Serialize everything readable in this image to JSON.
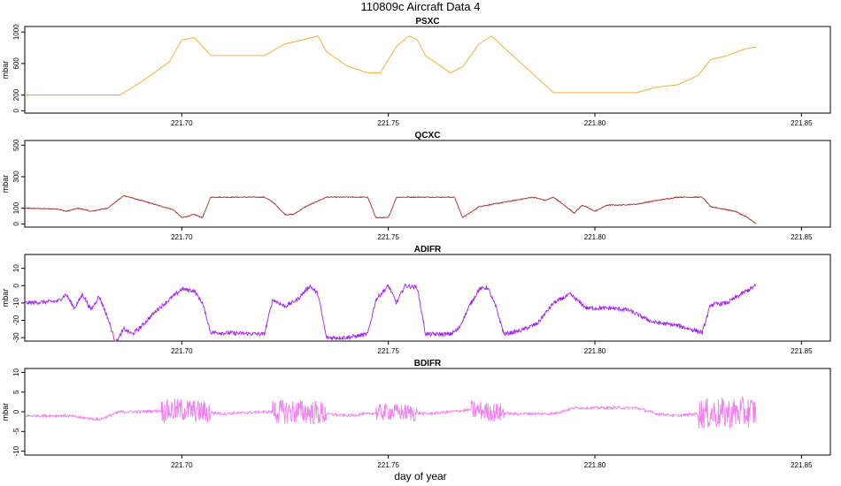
{
  "figure": {
    "title": "110809c   Aircraft Data 4",
    "xlabel": "day of year"
  },
  "chart_data": [
    {
      "type": "line",
      "title": "PSXC",
      "ylabel": "mbar",
      "color": "#f5a623",
      "xlim": [
        221.662,
        221.857
      ],
      "ylim": [
        -30,
        1070
      ],
      "xticks": [
        "221.70",
        "221.75",
        "221.80",
        "221.85"
      ],
      "xtick_values": [
        221.7,
        221.75,
        221.8,
        221.85
      ],
      "yticks": [
        "0",
        "200",
        "600",
        "1000"
      ],
      "ytick_values": [
        0,
        200,
        600,
        1000
      ],
      "noise": 0,
      "x": [
        221.662,
        221.685,
        221.69,
        221.697,
        221.7,
        221.703,
        221.705,
        221.707,
        221.72,
        221.725,
        221.73,
        221.733,
        221.735,
        221.74,
        221.745,
        221.748,
        221.752,
        221.755,
        221.757,
        221.759,
        221.765,
        221.768,
        221.772,
        221.775,
        221.778,
        221.79,
        221.81,
        221.815,
        221.82,
        221.823,
        221.825,
        221.828,
        221.832,
        221.836,
        221.839
      ],
      "y": [
        200,
        200,
        360,
        620,
        900,
        930,
        820,
        700,
        700,
        850,
        910,
        950,
        750,
        570,
        480,
        480,
        820,
        950,
        900,
        700,
        480,
        560,
        850,
        950,
        800,
        230,
        230,
        300,
        330,
        400,
        450,
        650,
        700,
        780,
        810
      ]
    },
    {
      "type": "line",
      "title": "QCXC",
      "ylabel": "mbar",
      "color": "#a52a2a",
      "xlim": [
        221.662,
        221.857
      ],
      "ylim": [
        -20,
        530
      ],
      "xticks": [
        "221.70",
        "221.75",
        "221.80",
        "221.85"
      ],
      "xtick_values": [
        221.7,
        221.75,
        221.8,
        221.85
      ],
      "yticks": [
        "0",
        "100",
        "300",
        "500"
      ],
      "ytick_values": [
        0,
        100,
        300,
        500
      ],
      "noise": 3,
      "x": [
        221.662,
        221.67,
        221.672,
        221.675,
        221.678,
        221.682,
        221.686,
        221.69,
        221.694,
        221.698,
        221.7,
        221.703,
        221.705,
        221.707,
        221.72,
        221.722,
        221.725,
        221.727,
        221.73,
        221.735,
        221.745,
        221.747,
        221.75,
        221.752,
        221.766,
        221.768,
        221.772,
        221.785,
        221.788,
        221.79,
        221.792,
        221.795,
        221.797,
        221.8,
        221.803,
        221.806,
        221.81,
        221.814,
        221.82,
        221.826,
        221.828,
        221.834,
        221.837,
        221.839
      ],
      "y": [
        100,
        95,
        80,
        100,
        80,
        100,
        180,
        150,
        120,
        90,
        40,
        60,
        40,
        170,
        170,
        140,
        60,
        60,
        110,
        170,
        170,
        40,
        40,
        170,
        170,
        40,
        110,
        170,
        150,
        170,
        130,
        70,
        120,
        80,
        120,
        120,
        125,
        145,
        170,
        170,
        110,
        80,
        40,
        0
      ]
    },
    {
      "type": "line",
      "title": "ADIFR",
      "ylabel": "mbar",
      "color": "#a020f0",
      "xlim": [
        221.662,
        221.857
      ],
      "ylim": [
        -32,
        18
      ],
      "xticks": [
        "221.70",
        "221.75",
        "221.80",
        "221.85"
      ],
      "xtick_values": [
        221.7,
        221.75,
        221.8,
        221.85
      ],
      "yticks": [
        "-30",
        "-20",
        "-10",
        "0",
        "10"
      ],
      "ytick_values": [
        -30,
        -20,
        -10,
        0,
        10
      ],
      "noise": 1.2,
      "x": [
        221.662,
        221.67,
        221.672,
        221.674,
        221.676,
        221.678,
        221.68,
        221.682,
        221.684,
        221.686,
        221.688,
        221.69,
        221.694,
        221.697,
        221.7,
        221.703,
        221.705,
        221.707,
        221.72,
        221.722,
        221.725,
        221.728,
        221.731,
        221.733,
        221.735,
        221.74,
        221.745,
        221.747,
        221.75,
        221.752,
        221.754,
        221.757,
        221.759,
        221.765,
        221.767,
        221.77,
        221.772,
        221.774,
        221.776,
        221.778,
        221.782,
        221.786,
        221.79,
        221.794,
        221.798,
        221.804,
        221.808,
        221.814,
        221.82,
        221.826,
        221.828,
        221.832,
        221.836,
        221.839
      ],
      "y": [
        -10,
        -9,
        -5,
        -13,
        -5,
        -14,
        -6,
        -18,
        -33,
        -25,
        -28,
        -24,
        -14,
        -8,
        -2,
        -3,
        -10,
        -27,
        -28,
        -8,
        -12,
        -8,
        0,
        -5,
        -30,
        -30,
        -28,
        -8,
        0,
        -10,
        0,
        -1,
        -28,
        -28,
        -25,
        -10,
        -2,
        -1,
        -12,
        -28,
        -26,
        -22,
        -10,
        -5,
        -13,
        -13,
        -14,
        -21,
        -23,
        -27,
        -11,
        -10,
        -4,
        0
      ]
    },
    {
      "type": "line",
      "title": "BDIFR",
      "ylabel": "mbar",
      "color": "#ee82ee",
      "xlim": [
        221.662,
        221.857
      ],
      "ylim": [
        -11,
        11
      ],
      "xticks": [
        "221.70",
        "221.75",
        "221.80",
        "221.85"
      ],
      "xtick_values": [
        221.7,
        221.75,
        221.8,
        221.85
      ],
      "yticks": [
        "-10",
        "-5",
        "0",
        "5",
        "10"
      ],
      "ytick_values": [
        -10,
        -5,
        0,
        5,
        10
      ],
      "noise": 0.35,
      "bursts": [
        [
          221.695,
          221.707,
          3.0
        ],
        [
          221.722,
          221.735,
          3.2
        ],
        [
          221.747,
          221.757,
          2.2
        ],
        [
          221.77,
          221.778,
          2.5
        ],
        [
          221.825,
          221.839,
          4.0
        ]
      ],
      "x": [
        221.662,
        221.672,
        221.68,
        221.685,
        221.69,
        221.7,
        221.71,
        221.72,
        221.73,
        221.74,
        221.75,
        221.76,
        221.77,
        221.78,
        221.79,
        221.795,
        221.8,
        221.81,
        221.815,
        221.82,
        221.825,
        221.83,
        221.839
      ],
      "y": [
        -1,
        -1,
        -2,
        0,
        0,
        0.5,
        -0.5,
        0,
        0,
        -1,
        0,
        -0.5,
        0.5,
        -0.5,
        -0.5,
        1,
        1,
        1,
        -0.5,
        -1,
        -0.5,
        -0.5,
        0
      ]
    }
  ]
}
